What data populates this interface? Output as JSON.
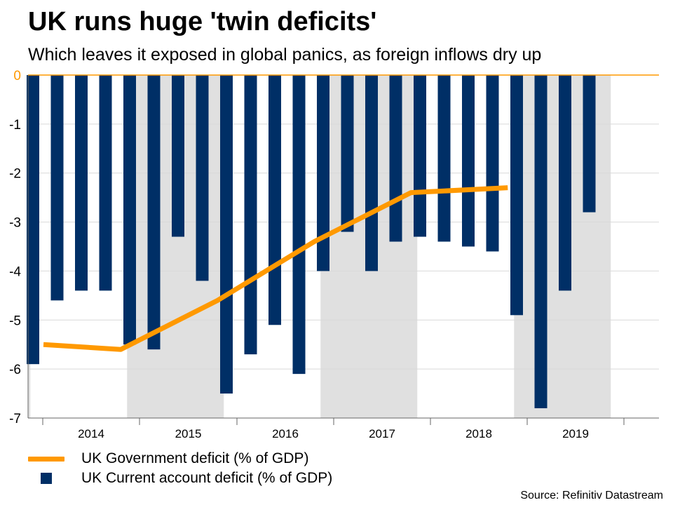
{
  "title": "UK runs huge 'twin deficits'",
  "subtitle": "Which leaves it exposed in global panics, as foreign inflows dry up",
  "source": "Source: Refinitiv Datastream",
  "colors": {
    "bar": "#002f66",
    "line": "#ff9900",
    "shade": "#e0e0e0",
    "axis_zero": "#ff9900",
    "grid": "#d9d9d9"
  },
  "chart_data": {
    "type": "bar",
    "title": "UK runs huge 'twin deficits'",
    "xlabel": "",
    "ylabel": "",
    "ylim": [
      -7,
      0
    ],
    "yticks": [
      "0",
      "-1",
      "-2",
      "-3",
      "-4",
      "-5",
      "-6",
      "-7"
    ],
    "years": [
      "2014",
      "2015",
      "2016",
      "2017",
      "2018",
      "2019"
    ],
    "quarters_per_year": 4,
    "series": [
      {
        "name": "UK Current account deficit (% of GDP)",
        "kind": "bar",
        "values": [
          -5.9,
          -4.6,
          -4.4,
          -4.4,
          -5.5,
          -5.6,
          -3.3,
          -4.2,
          -6.5,
          -5.7,
          -5.1,
          -6.1,
          -4.0,
          -3.2,
          -4.0,
          -3.4,
          -3.3,
          -3.4,
          -3.5,
          -3.6,
          -4.9,
          -6.8,
          -4.4,
          -2.8
        ]
      },
      {
        "name": "UK Government deficit (% of GDP)",
        "kind": "line",
        "points": [
          {
            "q": 1,
            "value": -5.5
          },
          {
            "q": 5,
            "value": -5.6
          },
          {
            "q": 9,
            "value": -4.6
          },
          {
            "q": 13,
            "value": -3.4
          },
          {
            "q": 17,
            "value": -2.4
          },
          {
            "q": 21,
            "value": -2.3
          }
        ]
      }
    ],
    "legend": [
      "UK Government deficit (% of GDP)",
      "UK Current account deficit (% of GDP)"
    ]
  }
}
